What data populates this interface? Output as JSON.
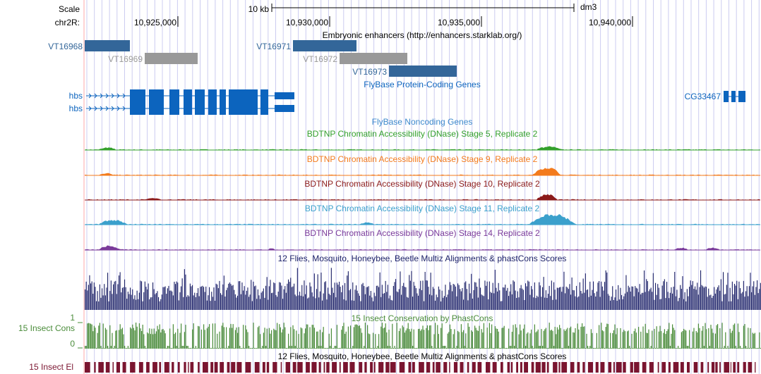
{
  "header": {
    "scale_label": "Scale",
    "scale_value": "10 kb",
    "assembly": "dm3",
    "chrom_label": "chr2R:",
    "positions": [
      "10,925,000",
      "10,930,000",
      "10,935,000",
      "10,940,000"
    ]
  },
  "enhancers": {
    "title": "Embryonic enhancers (http://enhancers.starklab.org/)",
    "items": [
      {
        "name": "VT16968",
        "color": "#336699"
      },
      {
        "name": "VT16969",
        "color": "#999999"
      },
      {
        "name": "VT16971",
        "color": "#336699"
      },
      {
        "name": "VT16972",
        "color": "#999999"
      },
      {
        "name": "VT16973",
        "color": "#336699"
      }
    ]
  },
  "genes": {
    "title": "FlyBase Protein-Coding Genes",
    "color": "#0c64be",
    "items": [
      {
        "name": "hbs"
      },
      {
        "name": "hbs"
      },
      {
        "name": "CG33467"
      }
    ]
  },
  "noncoding": {
    "title": "FlyBase Noncoding Genes",
    "color": "#3c88cc"
  },
  "dnase_tracks": [
    {
      "title": "BDTNP Chromatin Accessibility (DNase) Stage 5, Replicate 2",
      "color": "#33a02c"
    },
    {
      "title": "BDTNP Chromatin Accessibility (DNase) Stage 9, Replicate 2",
      "color": "#f37b1d"
    },
    {
      "title": "BDTNP Chromatin Accessibility (DNase) Stage 10, Replicate 2",
      "color": "#8b1a1a"
    },
    {
      "title": "BDTNP Chromatin Accessibility (DNase) Stage 11, Replicate 2",
      "color": "#3ba0cc"
    },
    {
      "title": "BDTNP Chromatin Accessibility (DNase) Stage 14, Replicate 2",
      "color": "#7a3a9a"
    }
  ],
  "multiz": {
    "title": "12 Flies, Mosquito, Honeybee, Beetle Multiz Alignments & phastCons Scores",
    "color": "#1a1f66"
  },
  "phastcons": {
    "title": "15 Insect Conservation by PhastCons",
    "side_label": "15 Insect Cons",
    "axis_max": "1",
    "axis_min": "0",
    "color": "#4a8c3a"
  },
  "elements": {
    "title": "12 Flies, Mosquito, Honeybee, Beetle Multiz Alignments & phastCons Scores",
    "side_label": "15 Insect El",
    "color": "#7a1530"
  },
  "colors": {
    "grid": "#ccccf0",
    "cursor": "#ffaaaa",
    "text": "#000000"
  }
}
